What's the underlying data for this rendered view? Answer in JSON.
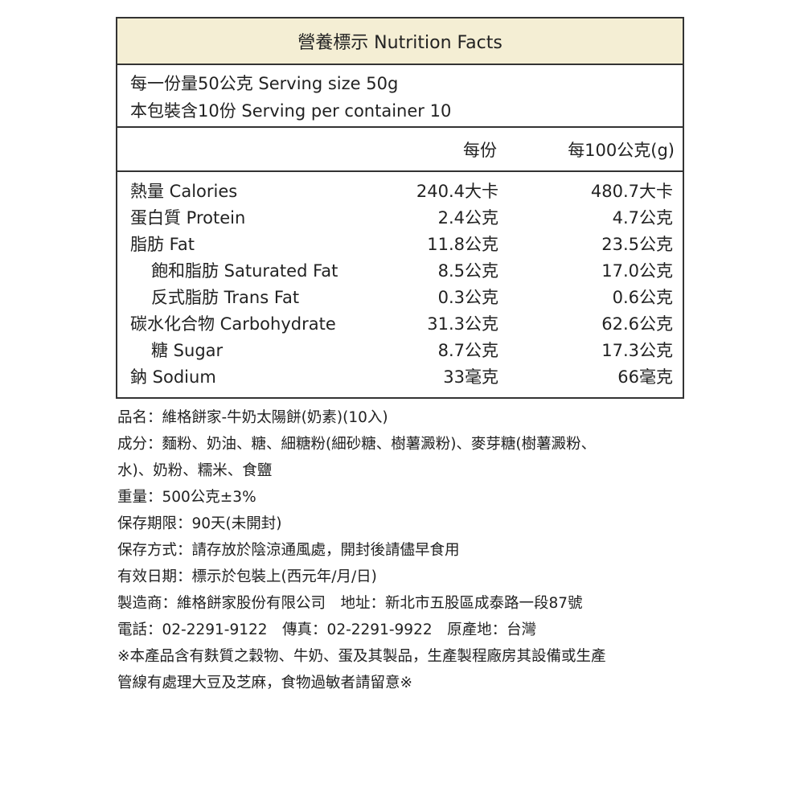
{
  "table": {
    "title": "營養標示 Nutrition Facts",
    "serving_size": "每一份量50公克  Serving size 50g",
    "servings": "本包裝含10份  Serving per container 10",
    "col_per_serving": "每份",
    "col_per_100g": "每100公克(g)",
    "rows": [
      {
        "label": "熱量 Calories",
        "per": "240.4大卡",
        "per100": "480.7大卡",
        "indent": false
      },
      {
        "label": "蛋白質 Protein",
        "per": "2.4公克",
        "per100": "4.7公克",
        "indent": false
      },
      {
        "label": "脂肪 Fat",
        "per": "11.8公克",
        "per100": "23.5公克",
        "indent": false
      },
      {
        "label": "飽和脂肪 Saturated Fat",
        "per": "8.5公克",
        "per100": "17.0公克",
        "indent": true
      },
      {
        "label": "反式脂肪 Trans Fat",
        "per": "0.3公克",
        "per100": "0.6公克",
        "indent": true
      },
      {
        "label": "碳水化合物 Carbohydrate",
        "per": "31.3公克",
        "per100": "62.6公克",
        "indent": false
      },
      {
        "label": "糖 Sugar",
        "per": "8.7公克",
        "per100": "17.3公克",
        "indent": true
      },
      {
        "label": "鈉 Sodium",
        "per": "33毫克",
        "per100": "66毫克",
        "indent": false
      }
    ]
  },
  "info": [
    "品名：維格餅家-牛奶太陽餅(奶素)(10入)",
    "成分：麵粉、奶油、糖、細糖粉(細砂糖、樹薯澱粉)、麥芽糖(樹薯澱粉、",
    "水)、奶粉、糯米、食鹽",
    "重量：500公克±3%",
    "保存期限：90天(未開封)",
    "保存方式：請存放於陰涼通風處，開封後請儘早食用",
    "有效日期：標示於包裝上(西元年/月/日)",
    "製造商：維格餅家股份有限公司　地址：新北市五股區成泰路一段87號",
    "電話：02-2291-9122　傳真：02-2291-9922　原產地：台灣",
    "※本產品含有麩質之穀物、牛奶、蛋及其製品，生產製程廠房其設備或生產",
    "管線有處理大豆及芝麻，食物過敏者請留意※"
  ],
  "colors": {
    "header_bg": "#f4eed4",
    "border": "#333333"
  }
}
